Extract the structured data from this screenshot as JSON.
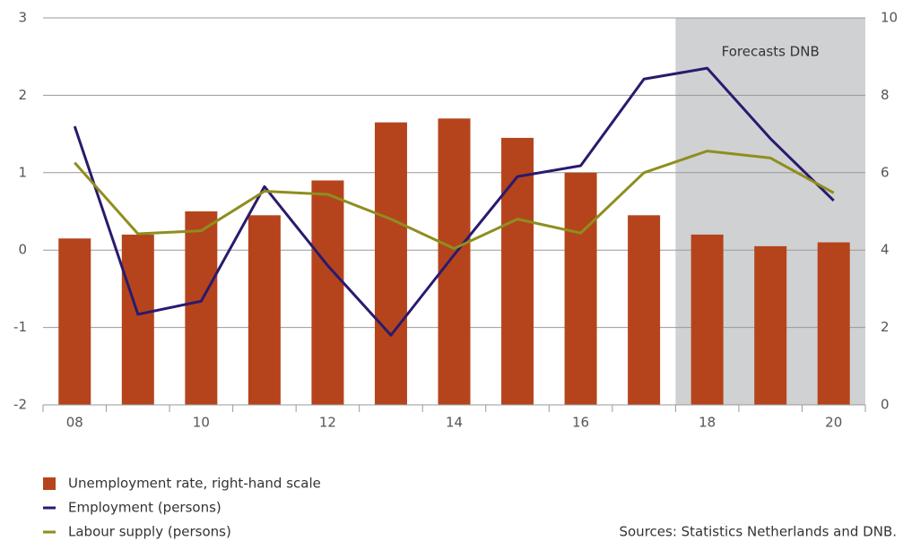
{
  "chart_data": {
    "type": "bar",
    "categories": [
      "08",
      null,
      "10",
      null,
      "12",
      null,
      "14",
      null,
      "16",
      null,
      "18",
      null,
      "20"
    ],
    "series": [
      {
        "name": "Unemployment rate, right-hand scale",
        "type": "bar",
        "axis": "y2",
        "color": "#b5441c",
        "values": [
          4.3,
          4.4,
          5.0,
          4.9,
          5.8,
          7.3,
          7.4,
          6.9,
          6.0,
          4.9,
          4.4,
          4.1,
          4.2
        ]
      },
      {
        "name": "Employment (persons)",
        "type": "line",
        "axis": "y",
        "color": "#2a1a6e",
        "values": [
          1.6,
          -0.83,
          -0.66,
          0.82,
          -0.2,
          -1.1,
          -0.06,
          0.95,
          1.09,
          2.21,
          2.35,
          1.44,
          0.64
        ]
      },
      {
        "name": "Labour supply (persons)",
        "type": "line",
        "axis": "y",
        "color": "#8e8e1e",
        "values": [
          1.13,
          0.21,
          0.25,
          0.76,
          0.72,
          0.4,
          0.02,
          0.4,
          0.22,
          1.0,
          1.28,
          1.19,
          0.74
        ]
      }
    ],
    "ylim": [
      -2,
      3
    ],
    "yticks": [
      -2,
      -1,
      0,
      1,
      2,
      3
    ],
    "y2lim": [
      0,
      10
    ],
    "y2ticks": [
      0,
      2,
      4,
      6,
      8,
      10
    ],
    "grid": true,
    "forecast": {
      "label": "Forecasts DNB",
      "start": "18",
      "color": "#d0d1d3"
    },
    "source": "Sources: Statistics Netherlands and DNB."
  }
}
